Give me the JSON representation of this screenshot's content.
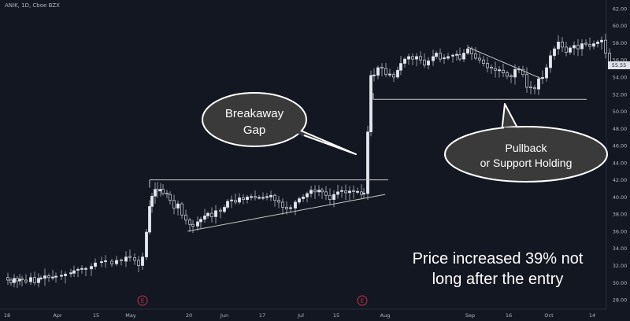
{
  "header": {
    "symbol_text": "ANIK, 1D, Cboe BZX"
  },
  "colors": {
    "background": "#131722",
    "candle": "#d1d4dc",
    "trendline": "#c8c8c8",
    "callout_fill": "#3a3a3a",
    "callout_stroke": "#ffffff"
  },
  "callouts": {
    "breakaway_line1": "Breakaway",
    "breakaway_line2": "Gap",
    "pullback_line1": "Pullback",
    "pullback_line2": "or Support Holding"
  },
  "note": {
    "line1": "Price increased 39% not",
    "line2": "long after the entry"
  },
  "price_tag": "55.55",
  "earnings_marker": "E",
  "chart_data": {
    "type": "candlestick",
    "title": "ANIK, 1D, Cboe BZX",
    "yaxis": {
      "ticks": [
        "62.00",
        "60.00",
        "58.00",
        "56.00",
        "54.00",
        "52.00",
        "50.00",
        "48.00",
        "46.00",
        "44.00",
        "42.00",
        "40.00",
        "38.00",
        "36.00",
        "34.00",
        "32.00",
        "30.00",
        "28.00"
      ],
      "range": [
        26.9,
        63.0
      ],
      "position": "right"
    },
    "xaxis": {
      "ticks": [
        "18",
        "Apr",
        "15",
        "May",
        "20",
        "Jun",
        "17",
        "Jul",
        "15",
        "Aug",
        "Sep",
        "16",
        "Oct",
        "14"
      ]
    },
    "last_price": 55.55,
    "close_path": [
      [
        0,
        30.6
      ],
      [
        6,
        30.3
      ],
      [
        10,
        30.0
      ],
      [
        14,
        30.5
      ],
      [
        18,
        30.2
      ],
      [
        21,
        30.4
      ],
      [
        24,
        30.3
      ],
      [
        29,
        30.1
      ],
      [
        35,
        30.6
      ],
      [
        40,
        30.0
      ],
      [
        45,
        30.5
      ],
      [
        48,
        30.5
      ],
      [
        53,
        30.8
      ],
      [
        58,
        30.6
      ],
      [
        63,
        30.6
      ],
      [
        67,
        30.7
      ],
      [
        74,
        30.8
      ],
      [
        79,
        31.0
      ],
      [
        86,
        31.1
      ],
      [
        90,
        31.4
      ],
      [
        95,
        31.5
      ],
      [
        100,
        31.6
      ],
      [
        105,
        31.6
      ],
      [
        112,
        31.9
      ],
      [
        117,
        32.3
      ],
      [
        125,
        32.4
      ],
      [
        130,
        32.5
      ],
      [
        138,
        32.2
      ],
      [
        144,
        32.6
      ],
      [
        150,
        32.5
      ],
      [
        156,
        33.0
      ],
      [
        161,
        32.9
      ],
      [
        167,
        32.6
      ],
      [
        172,
        32.0
      ],
      [
        177,
        33.0
      ],
      [
        182,
        35.9
      ],
      [
        186,
        38.9
      ],
      [
        189,
        40.1
      ],
      [
        193,
        40.9
      ],
      [
        196,
        40.7
      ],
      [
        200,
        40.9
      ],
      [
        203,
        40.4
      ],
      [
        208,
        40.3
      ],
      [
        212,
        39.6
      ],
      [
        217,
        38.7
      ],
      [
        222,
        39.2
      ],
      [
        227,
        37.9
      ],
      [
        232,
        37.3
      ],
      [
        237,
        36.8
      ],
      [
        241,
        36.6
      ],
      [
        247,
        37.1
      ],
      [
        251,
        37.4
      ],
      [
        256,
        37.8
      ],
      [
        260,
        38.1
      ],
      [
        265,
        37.7
      ],
      [
        270,
        38.4
      ],
      [
        276,
        38.3
      ],
      [
        281,
        38.8
      ],
      [
        285,
        39.5
      ],
      [
        290,
        39.6
      ],
      [
        295,
        39.4
      ],
      [
        300,
        39.9
      ],
      [
        305,
        39.7
      ],
      [
        310,
        40.0
      ],
      [
        315,
        40.0
      ],
      [
        320,
        39.9
      ],
      [
        325,
        39.9
      ],
      [
        330,
        39.9
      ],
      [
        335,
        40.0
      ],
      [
        340,
        40.2
      ],
      [
        345,
        39.6
      ],
      [
        350,
        39.4
      ],
      [
        355,
        38.8
      ],
      [
        360,
        38.6
      ],
      [
        365,
        38.7
      ],
      [
        371,
        39.4
      ],
      [
        376,
        39.8
      ],
      [
        381,
        40.0
      ],
      [
        386,
        40.4
      ],
      [
        391,
        40.8
      ],
      [
        396,
        40.6
      ],
      [
        401,
        40.8
      ],
      [
        405,
        40.6
      ],
      [
        410,
        40.2
      ],
      [
        415,
        39.7
      ],
      [
        420,
        40.3
      ],
      [
        425,
        40.6
      ],
      [
        430,
        40.7
      ],
      [
        435,
        40.5
      ],
      [
        440,
        40.7
      ],
      [
        445,
        40.6
      ],
      [
        450,
        40.6
      ],
      [
        455,
        40.3
      ],
      [
        458,
        40.4
      ],
      [
        463,
        47.6
      ],
      [
        467,
        54.2
      ],
      [
        471,
        54.2
      ],
      [
        476,
        55.1
      ],
      [
        481,
        55.0
      ],
      [
        486,
        54.3
      ],
      [
        491,
        54.3
      ],
      [
        496,
        54.0
      ],
      [
        501,
        54.8
      ],
      [
        505,
        55.6
      ],
      [
        510,
        56.1
      ],
      [
        515,
        56.4
      ],
      [
        520,
        56.1
      ],
      [
        525,
        56.4
      ],
      [
        530,
        56.0
      ],
      [
        535,
        55.4
      ],
      [
        540,
        55.9
      ],
      [
        546,
        56.4
      ],
      [
        550,
        56.8
      ],
      [
        555,
        56.1
      ],
      [
        560,
        56.2
      ],
      [
        565,
        56.4
      ],
      [
        571,
        56.5
      ],
      [
        576,
        56.6
      ],
      [
        580,
        56.1
      ],
      [
        585,
        56.8
      ],
      [
        590,
        57.3
      ],
      [
        595,
        56.7
      ],
      [
        600,
        56.2
      ],
      [
        605,
        56.0
      ],
      [
        610,
        55.6
      ],
      [
        615,
        55.1
      ],
      [
        620,
        55.0
      ],
      [
        625,
        54.8
      ],
      [
        630,
        54.8
      ],
      [
        635,
        54.5
      ],
      [
        640,
        54.1
      ],
      [
        645,
        54.0
      ],
      [
        650,
        54.9
      ],
      [
        655,
        54.9
      ],
      [
        660,
        54.3
      ],
      [
        665,
        52.8
      ],
      [
        670,
        52.7
      ],
      [
        675,
        52.6
      ],
      [
        680,
        53.8
      ],
      [
        685,
        53.9
      ],
      [
        690,
        55.1
      ],
      [
        695,
        56.5
      ],
      [
        700,
        57.3
      ],
      [
        705,
        58.1
      ],
      [
        710,
        57.5
      ],
      [
        715,
        56.9
      ],
      [
        720,
        57.4
      ],
      [
        725,
        57.7
      ],
      [
        730,
        57.3
      ],
      [
        735,
        57.9
      ],
      [
        740,
        57.8
      ],
      [
        745,
        57.6
      ],
      [
        750,
        57.9
      ],
      [
        755,
        58.1
      ],
      [
        760,
        58.3
      ],
      [
        765,
        56.8
      ],
      [
        770,
        55.6
      ]
    ],
    "annotations": {
      "consolidation_top": 42.0,
      "consolidation_rising_support": [
        36.0,
        40.3
      ],
      "support_level": 51.4,
      "pullback_downtrend": [
        57.5,
        53.8
      ]
    }
  }
}
